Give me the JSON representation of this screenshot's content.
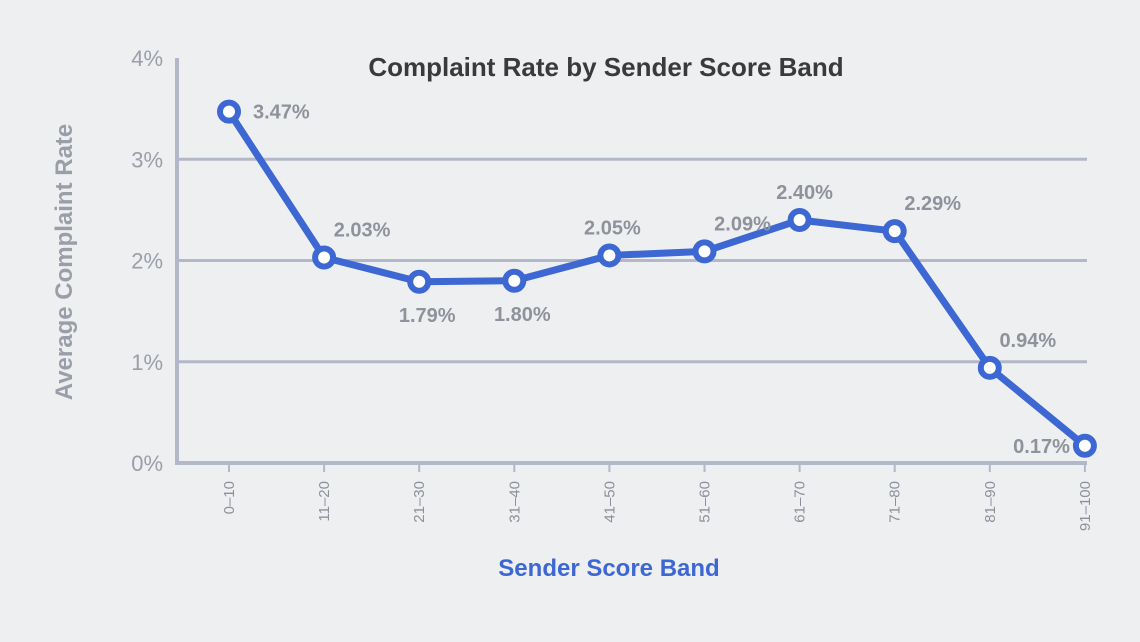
{
  "chart_data": {
    "type": "line",
    "title": "Complaint Rate by Sender Score Band",
    "xlabel": "Sender Score Band",
    "ylabel": "Average Complaint Rate",
    "categories": [
      "0–10",
      "11–20",
      "21–30",
      "31–40",
      "41–50",
      "51–60",
      "61–70",
      "71–80",
      "81–90",
      "91–100"
    ],
    "series": [
      {
        "name": "Average Complaint Rate",
        "values": [
          3.47,
          2.03,
          1.79,
          1.8,
          2.05,
          2.09,
          2.4,
          2.29,
          0.94,
          0.17
        ],
        "labels": [
          "3.47%",
          "2.03%",
          "1.79%",
          "1.80%",
          "2.05%",
          "2.09%",
          "2.40%",
          "2.29%",
          "0.94%",
          "0.17%"
        ]
      }
    ],
    "ylim": [
      0,
      4
    ],
    "yticks": [
      0,
      1,
      2,
      3,
      4
    ],
    "ytick_labels": [
      "0%",
      "1%",
      "2%",
      "3%",
      "4%"
    ],
    "grid": true,
    "colors": {
      "line": "#3d67d2",
      "xlabel": "#3d67d2",
      "grid": "#b3b8c8",
      "axis": "#b3b8c8"
    }
  }
}
